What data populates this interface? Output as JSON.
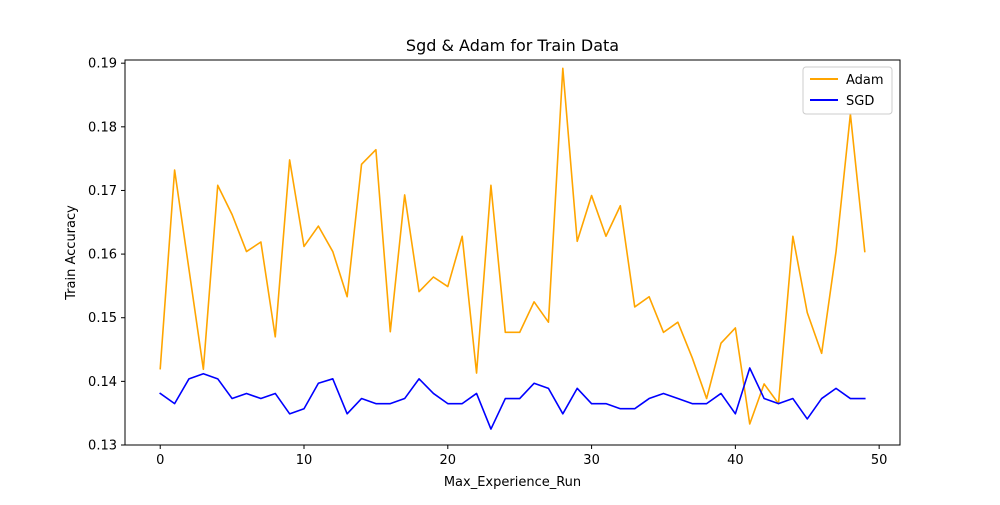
{
  "chart_data": {
    "type": "line",
    "title": "Sgd & Adam for Train Data",
    "xlabel": "Max_Experience_Run",
    "ylabel": "Train Accuracy",
    "xlim": [
      -2.45,
      51.45
    ],
    "ylim": [
      0.13,
      0.1905
    ],
    "xticks": [
      0,
      10,
      20,
      30,
      40,
      50
    ],
    "yticks": [
      0.13,
      0.14,
      0.15,
      0.16,
      0.17,
      0.18,
      0.19
    ],
    "xtick_labels": [
      "0",
      "10",
      "20",
      "30",
      "40",
      "50"
    ],
    "ytick_labels": [
      "0.13",
      "0.14",
      "0.15",
      "0.16",
      "0.17",
      "0.18",
      "0.19"
    ],
    "grid": false,
    "legend_position": "top-right",
    "x": [
      0,
      1,
      2,
      3,
      4,
      5,
      6,
      7,
      8,
      9,
      10,
      11,
      12,
      13,
      14,
      15,
      16,
      17,
      18,
      19,
      20,
      21,
      22,
      23,
      24,
      25,
      26,
      27,
      28,
      29,
      30,
      31,
      32,
      33,
      34,
      35,
      36,
      37,
      38,
      39,
      40,
      41,
      42,
      43,
      44,
      45,
      46,
      47,
      48,
      49
    ],
    "series": [
      {
        "name": "Adam",
        "color": "#ffa500",
        "values": [
          0.142,
          0.1732,
          0.1576,
          0.1419,
          0.1708,
          0.1662,
          0.1604,
          0.1619,
          0.147,
          0.1748,
          0.1612,
          0.1644,
          0.1604,
          0.1533,
          0.1741,
          0.1764,
          0.1478,
          0.1693,
          0.1541,
          0.1564,
          0.1549,
          0.1628,
          0.1413,
          0.1708,
          0.1477,
          0.1477,
          0.1525,
          0.1493,
          0.1892,
          0.162,
          0.1692,
          0.1628,
          0.1676,
          0.1517,
          0.1533,
          0.1477,
          0.1493,
          0.1437,
          0.1373,
          0.146,
          0.1484,
          0.1333,
          0.1396,
          0.1365,
          0.1628,
          0.1508,
          0.1444,
          0.1604,
          0.182,
          0.1604
        ]
      },
      {
        "name": "SGD",
        "color": "#0000ff",
        "values": [
          0.1381,
          0.1365,
          0.1404,
          0.1412,
          0.1404,
          0.1373,
          0.1381,
          0.1373,
          0.1381,
          0.1349,
          0.1357,
          0.1397,
          0.1404,
          0.1349,
          0.1373,
          0.1365,
          0.1365,
          0.1373,
          0.1404,
          0.1381,
          0.1365,
          0.1365,
          0.1381,
          0.1325,
          0.1373,
          0.1373,
          0.1397,
          0.1389,
          0.1349,
          0.1389,
          0.1365,
          0.1365,
          0.1357,
          0.1357,
          0.1373,
          0.1381,
          0.1373,
          0.1365,
          0.1365,
          0.1381,
          0.1349,
          0.1421,
          0.1373,
          0.1365,
          0.1373,
          0.1341,
          0.1373,
          0.1389,
          0.1373,
          0.1373
        ]
      }
    ]
  }
}
